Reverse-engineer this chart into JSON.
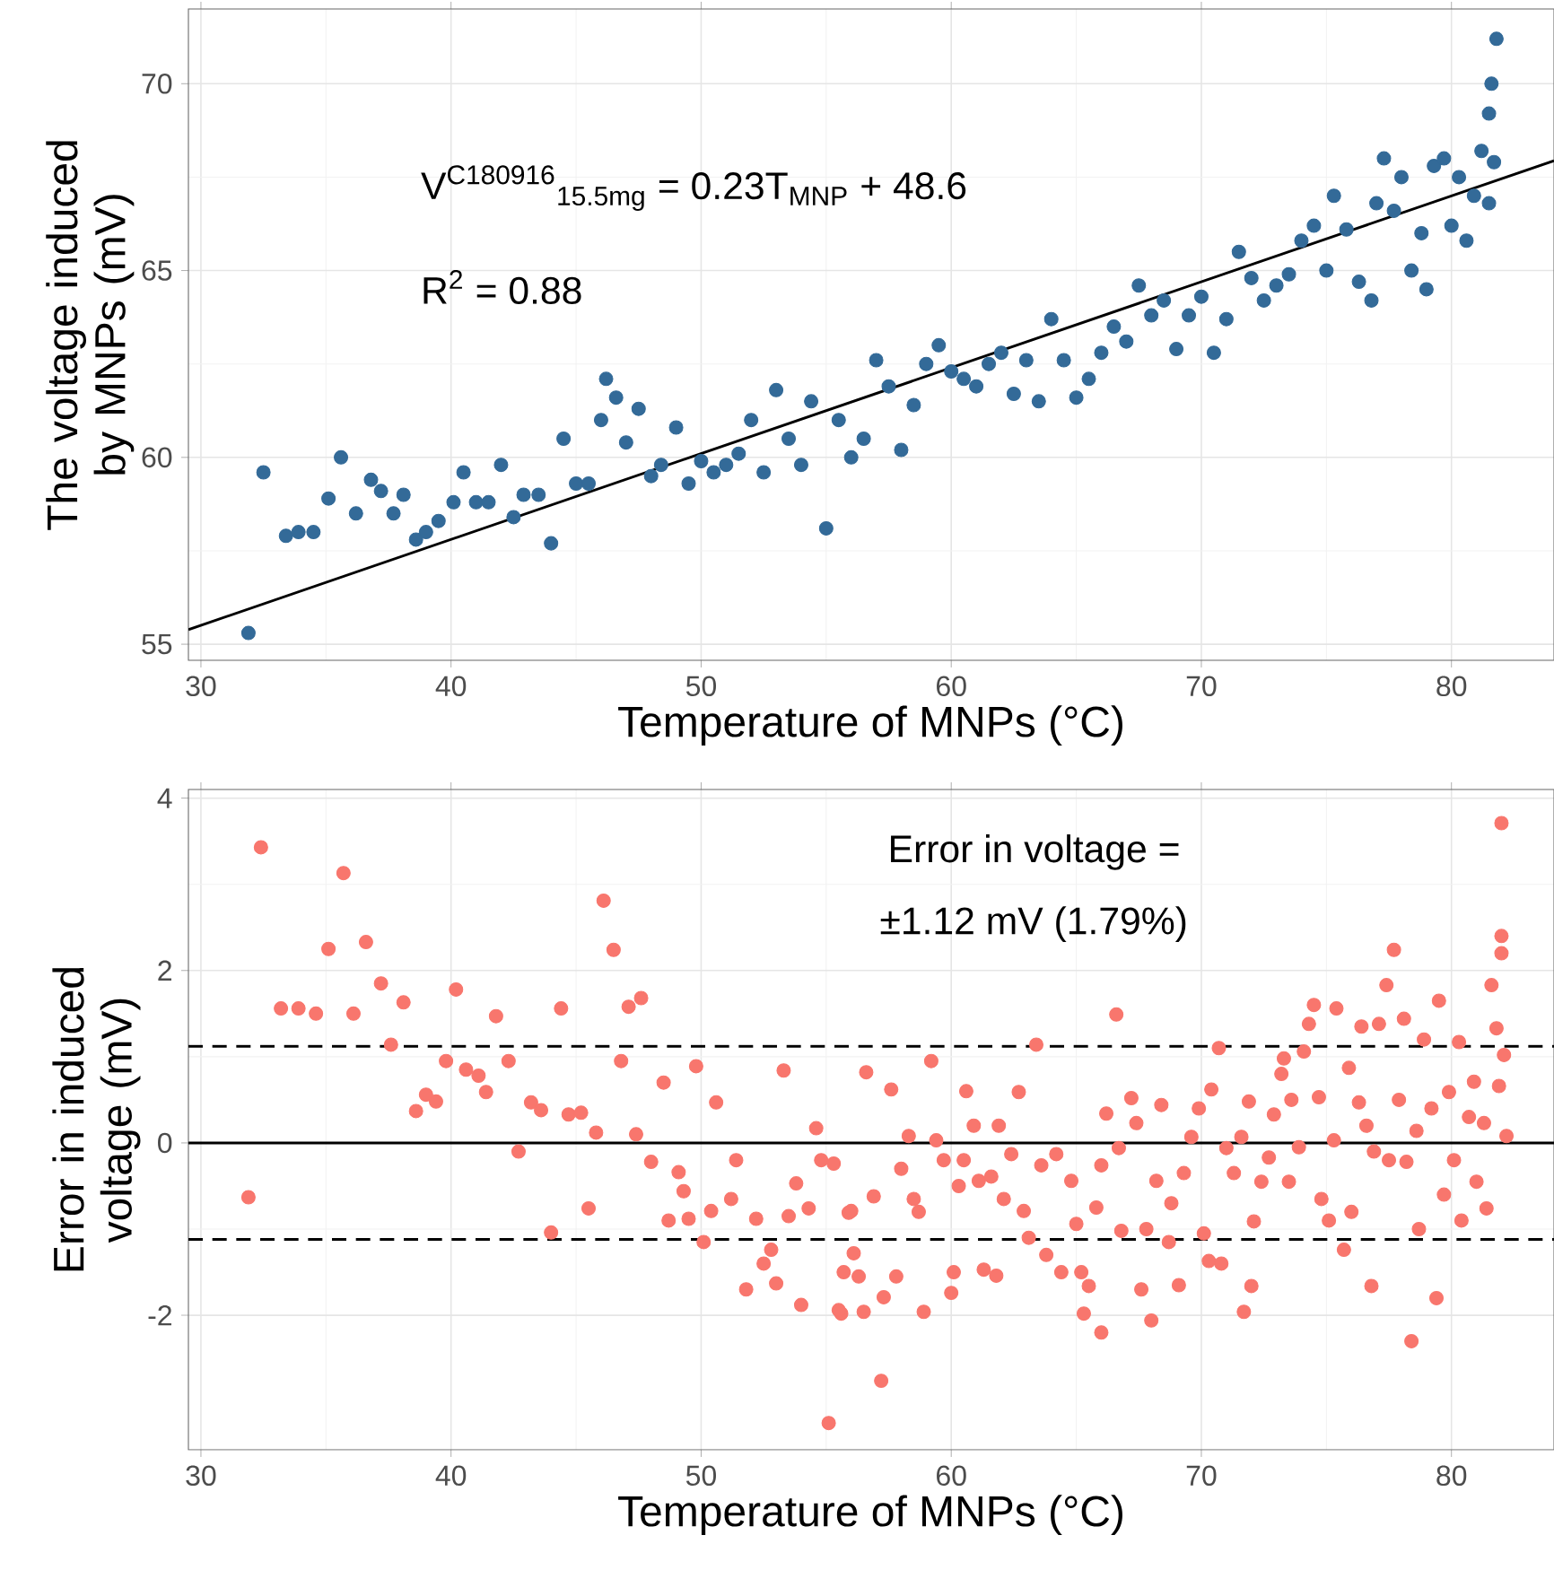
{
  "chart_data": [
    {
      "type": "scatter",
      "xlabel": "Temperature of MNPs (°C)",
      "ylabel": "The voltage induced by MNPs (mV)",
      "xlim": [
        29.5,
        84.1
      ],
      "ylim": [
        54.57,
        72.0
      ],
      "xticks": [
        30,
        40,
        50,
        60,
        70,
        80
      ],
      "yticks": [
        55,
        60,
        65,
        70
      ],
      "grid": true,
      "annotations": [
        "V$^{C180916}$$_{15.5mg}$ = 0.23T$_{MNP}$ + 48.6",
        "R$^{2}$ = 0.88"
      ],
      "marker": "circle",
      "series": [
        {
          "type": "scatter",
          "color": "#336a98",
          "x": [
            31.9,
            32.5,
            33.4,
            33.9,
            34.5,
            35.1,
            35.6,
            36.2,
            36.8,
            37.2,
            37.7,
            38.1,
            38.6,
            39.0,
            39.5,
            40.1,
            40.5,
            41.0,
            41.5,
            42.0,
            42.5,
            42.9,
            43.5,
            44.0,
            44.5,
            45.0,
            45.5,
            46.0,
            46.2,
            46.6,
            47.0,
            47.5,
            48.0,
            48.4,
            49.0,
            49.5,
            50.0,
            50.5,
            51.0,
            51.5,
            52.0,
            52.5,
            53.0,
            53.5,
            54.0,
            54.4,
            55.0,
            55.5,
            56.0,
            56.5,
            57.0,
            57.5,
            58.0,
            58.5,
            59.0,
            59.5,
            60.0,
            60.5,
            61.0,
            61.5,
            62.0,
            62.5,
            63.0,
            63.5,
            64.0,
            64.5,
            65.0,
            65.5,
            66.0,
            66.5,
            67.0,
            67.5,
            68.0,
            68.5,
            69.0,
            69.5,
            70.0,
            70.5,
            71.0,
            71.5,
            72.0,
            72.5,
            73.0,
            73.5,
            74.0,
            74.5,
            75.0,
            75.3,
            75.8,
            76.3,
            76.8,
            77.0,
            77.3,
            77.7,
            78.0,
            78.4,
            78.8,
            79.0,
            79.3,
            79.7,
            80.0,
            80.3,
            80.6,
            80.9,
            81.2,
            81.5,
            81.6,
            81.8,
            81.5,
            81.7
          ],
          "values": [
            55.3,
            59.6,
            57.9,
            58.0,
            58.0,
            58.9,
            60.0,
            58.5,
            59.4,
            59.1,
            58.5,
            59.0,
            57.8,
            58.0,
            58.3,
            58.8,
            59.6,
            58.8,
            58.8,
            59.8,
            58.4,
            59.0,
            59.0,
            57.7,
            60.5,
            59.3,
            59.3,
            61.0,
            62.1,
            61.6,
            60.4,
            61.3,
            59.5,
            59.8,
            60.8,
            59.3,
            59.9,
            59.6,
            59.8,
            60.1,
            61.0,
            59.6,
            61.8,
            60.5,
            59.8,
            61.5,
            58.1,
            61.0,
            60.0,
            60.5,
            62.6,
            61.9,
            60.2,
            61.4,
            62.5,
            63.0,
            62.3,
            62.1,
            61.9,
            62.5,
            62.8,
            61.7,
            62.6,
            61.5,
            63.7,
            62.6,
            61.6,
            62.1,
            62.8,
            63.5,
            63.1,
            64.6,
            63.8,
            64.2,
            62.9,
            63.8,
            64.3,
            62.8,
            63.7,
            65.5,
            64.8,
            64.2,
            64.6,
            64.9,
            65.8,
            66.2,
            65.0,
            67.0,
            66.1,
            64.7,
            64.2,
            66.8,
            68.0,
            66.6,
            67.5,
            65.0,
            66.0,
            64.5,
            67.8,
            68.0,
            66.2,
            67.5,
            65.8,
            67.0,
            68.2,
            69.2,
            70.0,
            71.2,
            66.8,
            67.9
          ]
        },
        {
          "type": "line",
          "marker": "none",
          "color": "#000000",
          "x": [
            29.5,
            84.1
          ],
          "values": [
            55.39,
            67.94
          ]
        }
      ]
    },
    {
      "type": "scatter",
      "xlabel": "Temperature of MNPs (°C)",
      "ylabel": "Error in induced voltage (mV)",
      "xlim": [
        29.5,
        84.1
      ],
      "ylim": [
        -3.56,
        4.1
      ],
      "xticks": [
        30,
        40,
        50,
        60,
        70,
        80
      ],
      "yticks": [
        -2,
        0,
        2,
        4
      ],
      "grid": true,
      "annotations": [
        "Error in voltage =",
        "±1.12 mV (1.79%)"
      ],
      "ref_lines": [
        {
          "axis": "y",
          "value": 0,
          "color": "#000000",
          "line_style": "solid"
        },
        {
          "axis": "y",
          "value": 1.12,
          "color": "#000000",
          "line_style": "dashed"
        },
        {
          "axis": "y",
          "value": -1.12,
          "color": "#000000",
          "line_style": "dashed"
        }
      ],
      "marker": "circle",
      "series": [
        {
          "type": "scatter",
          "color": "#f8766d",
          "x": [
            31.9,
            32.4,
            33.2,
            33.9,
            34.6,
            35.1,
            35.7,
            36.1,
            36.6,
            37.2,
            37.6,
            38.1,
            38.6,
            39.0,
            39.4,
            39.8,
            40.2,
            40.6,
            41.1,
            41.4,
            41.8,
            42.3,
            42.7,
            43.2,
            43.6,
            44.0,
            44.4,
            44.7,
            45.2,
            45.5,
            45.8,
            46.1,
            46.5,
            46.8,
            47.1,
            47.6,
            47.4,
            48.0,
            48.5,
            49.1,
            49.3,
            48.7,
            49.5,
            49.8,
            50.1,
            50.4,
            50.6,
            51.2,
            51.4,
            51.8,
            52.2,
            52.5,
            52.8,
            53.0,
            53.3,
            53.5,
            53.8,
            54.0,
            54.3,
            54.6,
            54.8,
            55.1,
            55.3,
            55.6,
            55.9,
            56.1,
            56.0,
            55.7,
            55.5,
            56.3,
            56.5,
            56.6,
            56.9,
            57.2,
            57.3,
            57.6,
            57.8,
            58.0,
            58.3,
            58.5,
            58.7,
            58.9,
            59.2,
            59.4,
            59.7,
            60.0,
            60.1,
            60.3,
            60.5,
            60.6,
            60.9,
            61.1,
            61.3,
            61.6,
            61.8,
            61.9,
            62.1,
            62.4,
            62.7,
            62.9,
            63.1,
            63.4,
            63.6,
            63.8,
            64.2,
            64.4,
            64.8,
            65.0,
            65.2,
            65.3,
            65.5,
            65.8,
            66.0,
            66.0,
            66.2,
            66.6,
            66.7,
            66.8,
            67.2,
            67.4,
            67.6,
            67.8,
            68.0,
            68.2,
            68.4,
            68.7,
            68.8,
            69.1,
            69.3,
            69.6,
            69.9,
            70.1,
            70.3,
            70.4,
            70.7,
            70.8,
            71.0,
            71.3,
            71.6,
            71.7,
            71.9,
            72.0,
            72.1,
            72.4,
            72.7,
            72.9,
            73.2,
            73.3,
            73.5,
            73.6,
            73.9,
            74.1,
            74.3,
            74.5,
            74.7,
            74.8,
            75.1,
            75.3,
            75.4,
            75.7,
            75.9,
            76.0,
            76.3,
            76.4,
            76.6,
            76.8,
            76.9,
            77.1,
            77.4,
            77.5,
            77.7,
            77.9,
            78.1,
            78.2,
            78.4,
            78.6,
            78.7,
            78.9,
            79.2,
            79.4,
            79.5,
            79.7,
            79.9,
            80.1,
            80.3,
            80.4,
            80.7,
            80.9,
            81.0,
            81.3,
            81.4,
            81.6,
            81.8,
            81.9,
            82.0,
            82.0,
            82.0,
            82.1,
            82.2
          ],
          "values": [
            -0.63,
            3.43,
            1.56,
            1.56,
            1.5,
            2.25,
            3.13,
            1.5,
            2.33,
            1.85,
            1.14,
            1.63,
            0.37,
            0.56,
            0.48,
            0.95,
            1.78,
            0.85,
            0.78,
            0.59,
            1.47,
            0.95,
            -0.1,
            0.47,
            0.38,
            -1.04,
            1.56,
            0.33,
            0.35,
            -0.76,
            0.12,
            2.81,
            2.24,
            0.95,
            1.58,
            1.68,
            0.1,
            -0.22,
            0.7,
            -0.34,
            -0.56,
            -0.9,
            -0.88,
            0.89,
            -1.15,
            -0.79,
            0.47,
            -0.65,
            -0.2,
            -1.7,
            -0.88,
            -1.4,
            -1.24,
            -1.63,
            0.84,
            -0.85,
            -0.47,
            -1.88,
            -0.76,
            0.17,
            -0.2,
            -3.25,
            -0.24,
            -1.98,
            -0.81,
            -1.28,
            -0.79,
            -1.5,
            -1.94,
            -1.55,
            -1.96,
            0.82,
            -0.62,
            -2.76,
            -1.79,
            0.62,
            -1.55,
            -0.3,
            0.08,
            -0.65,
            -0.8,
            -1.96,
            0.95,
            0.03,
            -0.2,
            -1.74,
            -1.5,
            -0.5,
            -0.2,
            0.6,
            0.2,
            -0.44,
            -1.47,
            -0.39,
            -1.54,
            0.2,
            -0.65,
            -0.13,
            0.59,
            -0.79,
            -1.1,
            1.14,
            -0.26,
            -1.3,
            -0.13,
            -1.5,
            -0.44,
            -0.94,
            -1.5,
            -1.98,
            -1.66,
            -0.75,
            -0.26,
            -2.2,
            0.34,
            1.49,
            -0.06,
            -1.02,
            0.52,
            0.23,
            -1.7,
            -1.0,
            -2.06,
            -0.44,
            0.44,
            -1.15,
            -0.7,
            -1.65,
            -0.35,
            0.07,
            0.4,
            -1.05,
            -1.37,
            0.62,
            1.1,
            -1.4,
            -0.06,
            -0.35,
            0.07,
            -1.96,
            0.48,
            -1.66,
            -0.91,
            -0.45,
            -0.17,
            0.33,
            0.8,
            0.98,
            -0.45,
            0.5,
            -0.05,
            1.06,
            1.38,
            1.6,
            0.53,
            -0.65,
            -0.9,
            0.03,
            1.56,
            -1.24,
            0.87,
            -0.8,
            0.47,
            1.35,
            0.2,
            -1.66,
            -0.1,
            1.38,
            1.83,
            -0.2,
            2.24,
            0.5,
            1.44,
            -0.22,
            -2.3,
            0.14,
            -1.0,
            1.2,
            0.4,
            -1.8,
            1.65,
            -0.6,
            0.59,
            -0.2,
            1.17,
            -0.9,
            0.3,
            0.71,
            -0.45,
            0.23,
            -0.76,
            1.83,
            1.33,
            0.66,
            3.71,
            2.4,
            2.2,
            1.02,
            0.08
          ]
        }
      ]
    }
  ]
}
